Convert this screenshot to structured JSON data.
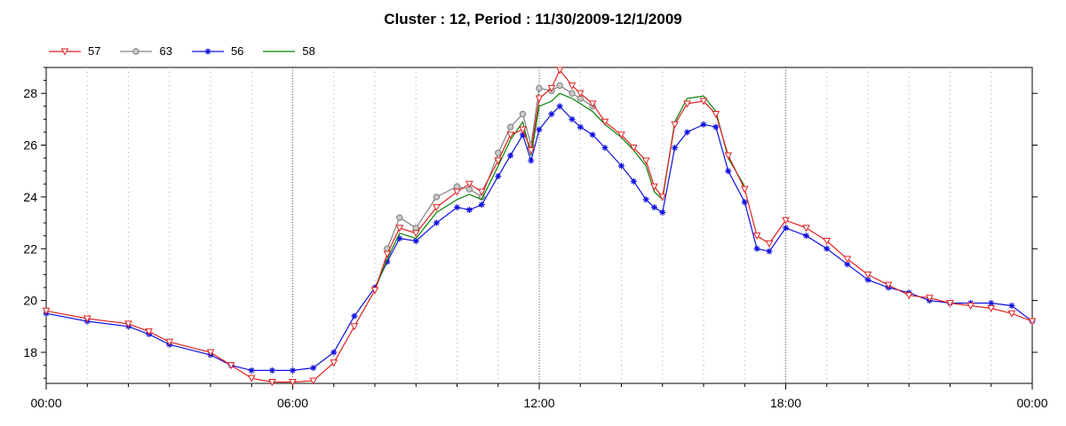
{
  "chart_data": {
    "type": "line",
    "title": "Cluster : 12, Period : 11/30/2009-12/1/2009",
    "xlabel": "",
    "ylabel": "",
    "x_ticks": [
      "00:00",
      "06:00",
      "12:00",
      "18:00",
      "00:00"
    ],
    "y_ticks": [
      18,
      20,
      22,
      24,
      26,
      28
    ],
    "xlim": [
      0,
      24
    ],
    "ylim": [
      16.8,
      29.0
    ],
    "grid": "dotted vertical",
    "legend_position": "top-left",
    "series": [
      {
        "name": "57",
        "color": "#e02020",
        "marker": "triangle-down",
        "x": [
          0,
          1,
          2,
          2.5,
          3,
          4,
          4.5,
          5,
          5.5,
          6,
          6.5,
          7,
          7.5,
          8,
          8.3,
          8.6,
          9,
          9.5,
          10,
          10.3,
          10.6,
          11,
          11.3,
          11.6,
          11.8,
          12,
          12.3,
          12.5,
          12.8,
          13,
          13.3,
          13.6,
          14,
          14.3,
          14.6,
          14.8,
          15,
          15.3,
          15.6,
          16,
          16.3,
          16.6,
          17,
          17.3,
          17.6,
          18,
          18.5,
          19,
          19.5,
          20,
          20.5,
          21,
          21.5,
          22,
          22.5,
          23,
          23.5,
          24
        ],
        "y": [
          19.6,
          19.3,
          19.1,
          18.8,
          18.4,
          18.0,
          17.5,
          17.0,
          16.85,
          16.85,
          16.9,
          17.6,
          19.0,
          20.4,
          21.8,
          22.8,
          22.6,
          23.6,
          24.2,
          24.5,
          24.2,
          25.4,
          26.4,
          26.6,
          25.8,
          27.8,
          28.2,
          28.9,
          28.3,
          28.0,
          27.6,
          26.9,
          26.4,
          25.9,
          25.4,
          24.4,
          24.0,
          26.8,
          27.6,
          27.7,
          27.2,
          25.6,
          24.3,
          22.5,
          22.2,
          23.1,
          22.8,
          22.3,
          21.6,
          21.0,
          20.6,
          20.2,
          20.1,
          19.9,
          19.8,
          19.7,
          19.5,
          19.2
        ]
      },
      {
        "name": "63",
        "color": "#808080",
        "marker": "circle",
        "x": [
          8.3,
          8.6,
          9,
          9.5,
          10,
          10.3,
          10.6,
          11,
          11.3,
          11.6,
          11.8,
          12,
          12.3,
          12.5,
          12.8,
          13,
          13.3
        ],
        "y": [
          22.0,
          23.2,
          22.8,
          24.0,
          24.4,
          24.3,
          24.0,
          25.7,
          26.7,
          27.2,
          26.0,
          28.2,
          28.1,
          28.3,
          28.0,
          27.8,
          27.5
        ]
      },
      {
        "name": "56",
        "color": "#1010e0",
        "marker": "asterisk",
        "x": [
          0,
          1,
          2,
          2.5,
          3,
          4,
          4.5,
          5,
          5.5,
          6,
          6.5,
          7,
          7.5,
          8,
          8.3,
          8.6,
          9,
          9.5,
          10,
          10.3,
          10.6,
          11,
          11.3,
          11.6,
          11.8,
          12,
          12.3,
          12.5,
          12.8,
          13,
          13.3,
          13.6,
          14,
          14.3,
          14.6,
          14.8,
          15,
          15.3,
          15.6,
          16,
          16.3,
          16.6,
          17,
          17.3,
          17.6,
          18,
          18.5,
          19,
          19.5,
          20,
          20.5,
          21,
          21.5,
          22,
          22.5,
          23,
          23.5,
          24
        ],
        "y": [
          19.5,
          19.2,
          19.0,
          18.7,
          18.3,
          17.9,
          17.5,
          17.3,
          17.3,
          17.3,
          17.4,
          18.0,
          19.4,
          20.5,
          21.5,
          22.4,
          22.3,
          23.0,
          23.6,
          23.5,
          23.7,
          24.8,
          25.6,
          26.4,
          25.4,
          26.6,
          27.2,
          27.5,
          27.0,
          26.7,
          26.4,
          25.9,
          25.2,
          24.6,
          23.9,
          23.6,
          23.4,
          25.9,
          26.5,
          26.8,
          26.7,
          25.0,
          23.8,
          22.0,
          21.9,
          22.8,
          22.5,
          22.0,
          21.4,
          20.8,
          20.5,
          20.3,
          20.0,
          19.9,
          19.9,
          19.9,
          19.8,
          19.2
        ]
      },
      {
        "name": "58",
        "color": "#008000",
        "marker": "none",
        "x": [
          8,
          8.3,
          8.6,
          9,
          9.5,
          10,
          10.3,
          10.6,
          11,
          11.3,
          11.6,
          11.8,
          12,
          12.3,
          12.5,
          12.8,
          13,
          13.3,
          13.6,
          14,
          14.3,
          14.6,
          14.8,
          15,
          15.3,
          15.6,
          16,
          16.3,
          16.6,
          17
        ],
        "y": [
          20.4,
          21.6,
          22.6,
          22.4,
          23.4,
          23.9,
          24.1,
          23.9,
          25.2,
          26.2,
          26.9,
          25.6,
          27.5,
          27.7,
          28.0,
          27.8,
          27.6,
          27.3,
          26.8,
          26.3,
          25.8,
          25.2,
          24.2,
          23.9,
          26.9,
          27.8,
          27.9,
          27.3,
          25.5,
          24.4
        ]
      }
    ]
  }
}
